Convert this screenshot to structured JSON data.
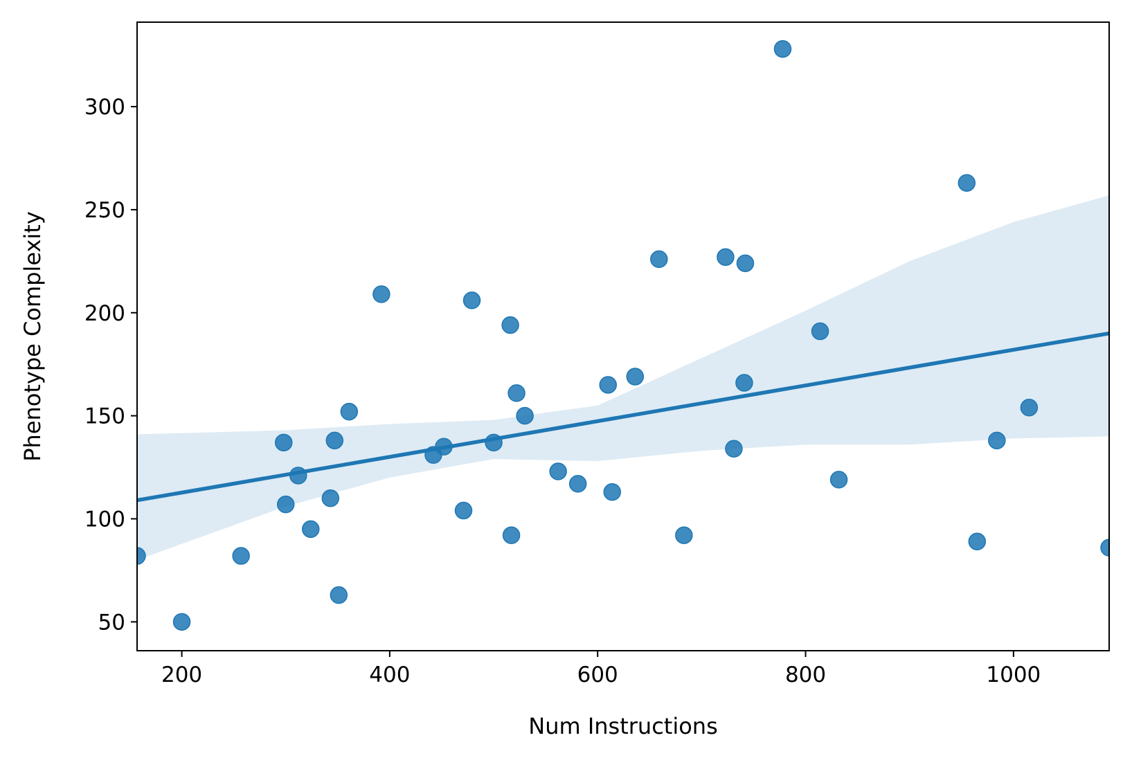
{
  "chart_data": {
    "type": "scatter",
    "xlabel": "Num Instructions",
    "ylabel": "Phenotype Complexity",
    "xlim": [
      157,
      1092
    ],
    "ylim": [
      36,
      341
    ],
    "xticks": [
      200,
      400,
      600,
      800,
      1000
    ],
    "yticks": [
      50,
      100,
      150,
      200,
      250,
      300
    ],
    "grid": false,
    "colors": {
      "points": "#1f77b4",
      "regression_line": "#1f77b4",
      "confidence_band": "#1f77b4"
    },
    "points": [
      {
        "x": 157,
        "y": 82
      },
      {
        "x": 200,
        "y": 50
      },
      {
        "x": 257,
        "y": 82
      },
      {
        "x": 298,
        "y": 137
      },
      {
        "x": 300,
        "y": 107
      },
      {
        "x": 312,
        "y": 121
      },
      {
        "x": 324,
        "y": 95
      },
      {
        "x": 343,
        "y": 110
      },
      {
        "x": 347,
        "y": 138
      },
      {
        "x": 351,
        "y": 63
      },
      {
        "x": 361,
        "y": 152
      },
      {
        "x": 392,
        "y": 209
      },
      {
        "x": 442,
        "y": 131
      },
      {
        "x": 452,
        "y": 135
      },
      {
        "x": 471,
        "y": 104
      },
      {
        "x": 479,
        "y": 206
      },
      {
        "x": 500,
        "y": 137
      },
      {
        "x": 516,
        "y": 194
      },
      {
        "x": 517,
        "y": 92
      },
      {
        "x": 522,
        "y": 161
      },
      {
        "x": 530,
        "y": 150
      },
      {
        "x": 562,
        "y": 123
      },
      {
        "x": 581,
        "y": 117
      },
      {
        "x": 610,
        "y": 165
      },
      {
        "x": 614,
        "y": 113
      },
      {
        "x": 636,
        "y": 169
      },
      {
        "x": 659,
        "y": 226
      },
      {
        "x": 683,
        "y": 92
      },
      {
        "x": 723,
        "y": 227
      },
      {
        "x": 731,
        "y": 134
      },
      {
        "x": 741,
        "y": 166
      },
      {
        "x": 742,
        "y": 224
      },
      {
        "x": 778,
        "y": 328
      },
      {
        "x": 814,
        "y": 191
      },
      {
        "x": 832,
        "y": 119
      },
      {
        "x": 955,
        "y": 263
      },
      {
        "x": 965,
        "y": 89
      },
      {
        "x": 984,
        "y": 138
      },
      {
        "x": 1015,
        "y": 154
      },
      {
        "x": 1092,
        "y": 86
      }
    ],
    "regression": {
      "line": [
        {
          "x": 157,
          "y": 109
        },
        {
          "x": 1092,
          "y": 190
        }
      ],
      "confidence_band": {
        "x": [
          157,
          300,
          400,
          500,
          600,
          700,
          800,
          900,
          1000,
          1092
        ],
        "lower": [
          80,
          106,
          120,
          129,
          128,
          133,
          136,
          136,
          139,
          140
        ],
        "upper": [
          141,
          143,
          146,
          148,
          155,
          178,
          201,
          225,
          244,
          257
        ]
      }
    }
  }
}
